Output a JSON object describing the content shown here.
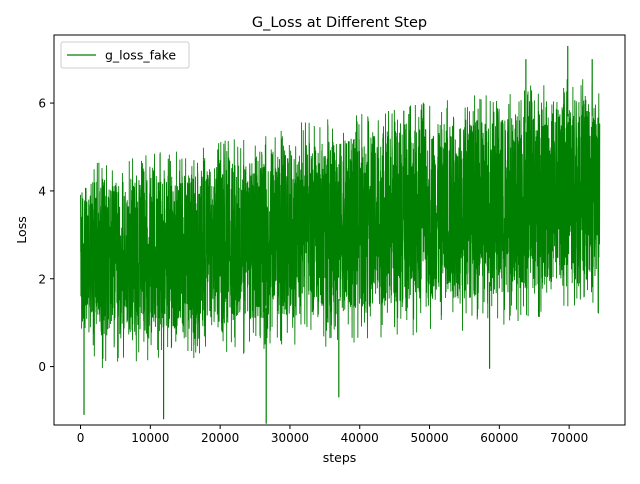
{
  "chart_data": {
    "type": "line",
    "title": "G_Loss at Different Step",
    "xlabel": "steps",
    "ylabel": "Loss",
    "xlim": [
      -3800,
      78000
    ],
    "ylim": [
      -1.33,
      7.55
    ],
    "xticks": [
      0,
      10000,
      20000,
      30000,
      40000,
      50000,
      60000,
      70000
    ],
    "xtick_labels": [
      "0",
      "10000",
      "20000",
      "30000",
      "40000",
      "50000",
      "60000",
      "70000"
    ],
    "yticks": [
      0,
      2,
      4,
      6
    ],
    "ytick_labels": [
      "0",
      "2",
      "4",
      "6"
    ],
    "grid": false,
    "legend": {
      "position": "top-left",
      "entries": [
        "g_loss_fake"
      ]
    },
    "series": [
      {
        "name": "g_loss_fake",
        "color": "#008000",
        "x_range": [
          0,
          74400
        ],
        "envelope": {
          "x": [
            0,
            5000,
            10000,
            15000,
            20000,
            25000,
            30000,
            35000,
            40000,
            45000,
            50000,
            55000,
            60000,
            65000,
            70000,
            74400
          ],
          "dense_low": [
            0.7,
            0.7,
            0.75,
            0.85,
            0.95,
            1.0,
            1.1,
            1.2,
            1.3,
            1.4,
            1.5,
            1.55,
            1.65,
            1.75,
            1.85,
            1.95
          ],
          "dense_high": [
            4.1,
            4.2,
            4.3,
            4.4,
            4.6,
            4.7,
            5.0,
            5.1,
            5.2,
            5.4,
            5.5,
            5.6,
            5.7,
            5.9,
            6.0,
            6.0
          ]
        },
        "extremes": [
          {
            "x": 500,
            "y": -1.1
          },
          {
            "x": 11900,
            "y": -1.2
          },
          {
            "x": 26600,
            "y": -1.3
          },
          {
            "x": 37000,
            "y": -0.7
          },
          {
            "x": 58600,
            "y": -0.05
          },
          {
            "x": 63800,
            "y": 7.0
          },
          {
            "x": 69800,
            "y": 7.3
          },
          {
            "x": 73300,
            "y": 7.0
          }
        ]
      }
    ]
  }
}
